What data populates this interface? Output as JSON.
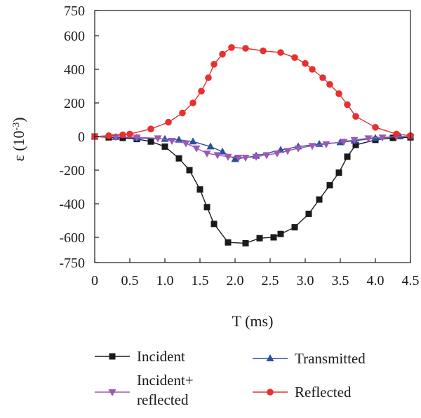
{
  "chart_data": {
    "type": "line",
    "xlabel": "T (ms)",
    "ylabel_main": "ε (10",
    "ylabel_exp": "-3",
    "ylabel_close": ")",
    "xlim": [
      0,
      4.5
    ],
    "ylim": [
      -750,
      750
    ],
    "x_ticks": [
      "0",
      "0.5",
      "1.0",
      "1.5",
      "2.0",
      "2.5",
      "3.0",
      "3.5",
      "4.0",
      "4.5"
    ],
    "x_tick_values": [
      0,
      0.5,
      1.0,
      1.5,
      2.0,
      2.5,
      3.0,
      3.5,
      4.0,
      4.5
    ],
    "y_ticks": [
      "750",
      "600",
      "400",
      "200",
      "0",
      "-200",
      "-400",
      "-600",
      "-750"
    ],
    "y_tick_values": [
      750,
      600,
      400,
      200,
      0,
      -200,
      -400,
      -600,
      -750
    ],
    "grid": false,
    "legend_position": "bottom",
    "series": [
      {
        "name": "Incident",
        "marker": "square",
        "color": "#1a1a1a",
        "x": [
          0,
          0.2,
          0.4,
          0.6,
          0.8,
          1.0,
          1.2,
          1.35,
          1.5,
          1.6,
          1.7,
          1.9,
          2.15,
          2.35,
          2.55,
          2.65,
          2.85,
          3.05,
          3.2,
          3.35,
          3.48,
          3.6,
          3.72,
          4.0,
          4.25,
          4.5
        ],
        "y": [
          0,
          -5,
          -8,
          -15,
          -30,
          -60,
          -130,
          -200,
          -315,
          -420,
          -520,
          -630,
          -635,
          -605,
          -600,
          -580,
          -540,
          -460,
          -375,
          -290,
          -215,
          -120,
          -50,
          -20,
          -8,
          -5
        ]
      },
      {
        "name": "Transmitted",
        "marker": "triangle-up",
        "color": "#2b4fa0",
        "x": [
          0,
          0.3,
          0.6,
          1.0,
          1.2,
          1.4,
          1.65,
          1.82,
          2.0,
          2.3,
          2.65,
          2.9,
          3.2,
          3.5,
          3.7,
          4.0,
          4.35,
          4.5
        ],
        "y": [
          0,
          -3,
          -8,
          -15,
          -20,
          -30,
          -60,
          -90,
          -135,
          -115,
          -80,
          -60,
          -45,
          -35,
          -25,
          -10,
          0,
          0
        ]
      },
      {
        "name": "Incident+\nreflected",
        "marker": "triangle-down",
        "color": "#9b59b6",
        "x": [
          0,
          0.3,
          0.6,
          0.9,
          1.1,
          1.3,
          1.45,
          1.6,
          1.75,
          1.9,
          2.05,
          2.15,
          2.3,
          2.45,
          2.6,
          2.75,
          2.9,
          3.1,
          3.3,
          3.55,
          3.7,
          3.9,
          4.1,
          4.3,
          4.5
        ],
        "y": [
          0,
          -2,
          -5,
          -10,
          -25,
          -40,
          -70,
          -100,
          -110,
          -120,
          -125,
          -125,
          -120,
          -110,
          -100,
          -85,
          -70,
          -55,
          -45,
          -30,
          -20,
          -10,
          -5,
          0,
          0
        ]
      },
      {
        "name": "Reflected",
        "marker": "circle",
        "color": "#e8302f",
        "x": [
          0,
          0.2,
          0.4,
          0.5,
          0.8,
          1.05,
          1.25,
          1.4,
          1.52,
          1.62,
          1.7,
          1.82,
          1.95,
          2.15,
          2.4,
          2.65,
          2.85,
          3.0,
          3.1,
          3.25,
          3.35,
          3.48,
          3.6,
          3.72,
          4.0,
          4.3,
          4.5
        ],
        "y": [
          0,
          5,
          10,
          15,
          45,
          85,
          140,
          200,
          270,
          350,
          430,
          490,
          530,
          525,
          510,
          500,
          470,
          435,
          400,
          350,
          310,
          255,
          190,
          120,
          55,
          15,
          5
        ]
      }
    ]
  }
}
